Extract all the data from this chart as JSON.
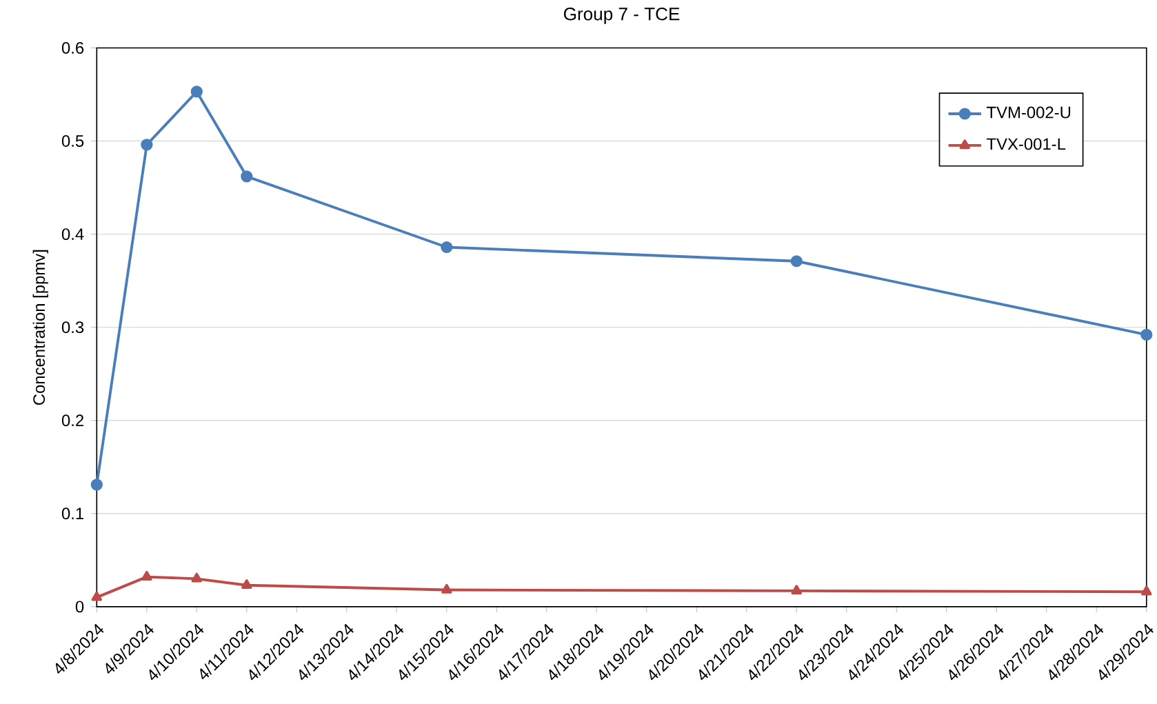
{
  "chart_data": {
    "type": "line",
    "title": "Group 7 - TCE",
    "ylabel": "Concentration [ppmv]",
    "series": [
      {
        "name": "TVM-002-U",
        "color": "#4a7ebb",
        "marker": "circle",
        "x": [
          "2024-04-08",
          "2024-04-09",
          "2024-04-10",
          "2024-04-11",
          "2024-04-15",
          "2024-04-22",
          "2024-04-29"
        ],
        "values": [
          0.131,
          0.496,
          0.553,
          0.462,
          0.386,
          0.371,
          0.292
        ]
      },
      {
        "name": "TVX-001-L",
        "color": "#be4b48",
        "marker": "triangle",
        "x": [
          "2024-04-08",
          "2024-04-09",
          "2024-04-10",
          "2024-04-11",
          "2024-04-15",
          "2024-04-22",
          "2024-04-29"
        ],
        "values": [
          0.01,
          0.032,
          0.03,
          0.023,
          0.018,
          0.017,
          0.016
        ]
      }
    ],
    "xlim": [
      "2024-04-08",
      "2024-04-29"
    ],
    "xticks": [
      {
        "value": "2024-04-08",
        "label": "4/8/2024"
      },
      {
        "value": "2024-04-09",
        "label": "4/9/2024"
      },
      {
        "value": "2024-04-10",
        "label": "4/10/2024"
      },
      {
        "value": "2024-04-11",
        "label": "4/11/2024"
      },
      {
        "value": "2024-04-12",
        "label": "4/12/2024"
      },
      {
        "value": "2024-04-13",
        "label": "4/13/2024"
      },
      {
        "value": "2024-04-14",
        "label": "4/14/2024"
      },
      {
        "value": "2024-04-15",
        "label": "4/15/2024"
      },
      {
        "value": "2024-04-16",
        "label": "4/16/2024"
      },
      {
        "value": "2024-04-17",
        "label": "4/17/2024"
      },
      {
        "value": "2024-04-18",
        "label": "4/18/2024"
      },
      {
        "value": "2024-04-19",
        "label": "4/19/2024"
      },
      {
        "value": "2024-04-20",
        "label": "4/20/2024"
      },
      {
        "value": "2024-04-21",
        "label": "4/21/2024"
      },
      {
        "value": "2024-04-22",
        "label": "4/22/2024"
      },
      {
        "value": "2024-04-23",
        "label": "4/23/2024"
      },
      {
        "value": "2024-04-24",
        "label": "4/24/2024"
      },
      {
        "value": "2024-04-25",
        "label": "4/25/2024"
      },
      {
        "value": "2024-04-26",
        "label": "4/26/2024"
      },
      {
        "value": "2024-04-27",
        "label": "4/27/2024"
      },
      {
        "value": "2024-04-28",
        "label": "4/28/2024"
      },
      {
        "value": "2024-04-29",
        "label": "4/29/2024"
      }
    ],
    "ylim": [
      0,
      0.6
    ],
    "yticks": [
      0,
      0.1,
      0.2,
      0.3,
      0.4,
      0.5,
      0.6
    ],
    "grid": "y",
    "legend": "top right",
    "line_style": "solid"
  }
}
